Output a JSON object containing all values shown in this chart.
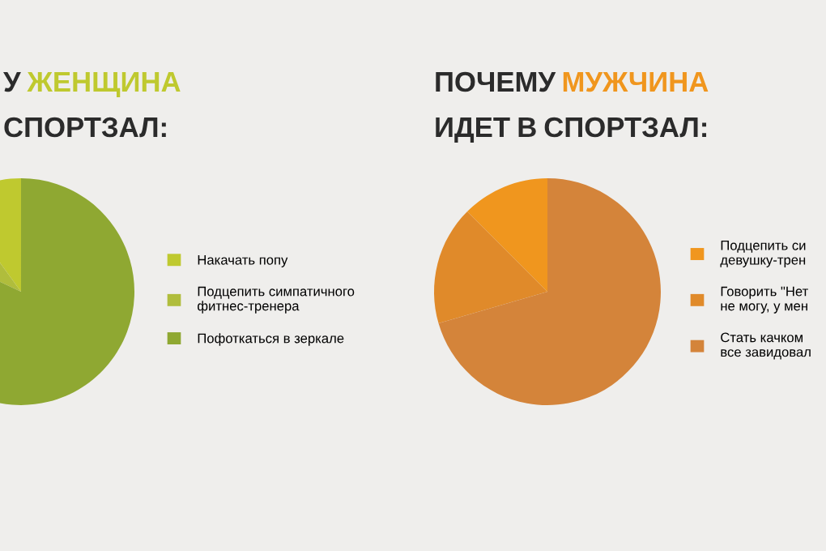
{
  "chart_data": [
    {
      "type": "pie",
      "title": "У ЖЕНЩИНА\nСПОРТЗАЛ:",
      "categories": [
        "Накачать попу",
        "Подцепить симпатичного\nфитнес-тренера",
        "Пофоткаться в зеркале"
      ],
      "values": [
        10,
        8,
        82
      ],
      "colors": [
        "#bfc92f",
        "#b0bd3c",
        "#8fa832"
      ],
      "legend": "right"
    },
    {
      "type": "pie",
      "title": "ПОЧЕМУ МУЖЧИНА\nИДЕТ В СПОРТЗАЛ:",
      "categories": [
        "Подцепить си\nдевушку-трен",
        "Говорить \"Нет\nне могу, у мен",
        "Стать качком\nвсе завидовал"
      ],
      "values": [
        12.5,
        17,
        70.5
      ],
      "colors": [
        "#f0961e",
        "#e08a2a",
        "#d4843a"
      ],
      "legend": "right"
    }
  ]
}
